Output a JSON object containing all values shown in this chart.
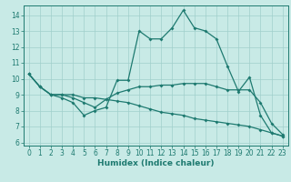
{
  "xlabel": "Humidex (Indice chaleur)",
  "xlim": [
    -0.5,
    23.5
  ],
  "ylim": [
    5.8,
    14.6
  ],
  "yticks": [
    6,
    7,
    8,
    9,
    10,
    11,
    12,
    13,
    14
  ],
  "xticks": [
    0,
    1,
    2,
    3,
    4,
    5,
    6,
    7,
    8,
    9,
    10,
    11,
    12,
    13,
    14,
    15,
    16,
    17,
    18,
    19,
    20,
    21,
    22,
    23
  ],
  "bg_color": "#c8eae6",
  "grid_color": "#a0cfcb",
  "line_color": "#1e7a70",
  "line1_x": [
    0,
    1,
    2,
    3,
    4,
    5,
    6,
    7,
    8,
    9,
    10,
    11,
    12,
    13,
    14,
    15,
    16,
    17,
    18,
    19,
    20,
    21,
    22,
    23
  ],
  "line1_y": [
    10.3,
    9.5,
    9.0,
    8.8,
    8.5,
    7.7,
    8.0,
    8.2,
    9.9,
    9.9,
    13.0,
    12.5,
    12.5,
    13.2,
    14.3,
    13.2,
    13.0,
    12.5,
    10.8,
    9.2,
    10.1,
    7.7,
    6.6,
    6.4
  ],
  "line2_x": [
    0,
    1,
    2,
    3,
    4,
    5,
    6,
    7,
    8,
    9,
    10,
    11,
    12,
    13,
    14,
    15,
    16,
    17,
    18,
    19,
    20,
    21,
    22,
    23
  ],
  "line2_y": [
    10.3,
    9.5,
    9.0,
    9.0,
    8.8,
    8.5,
    8.2,
    8.7,
    9.1,
    9.3,
    9.5,
    9.5,
    9.6,
    9.6,
    9.7,
    9.7,
    9.7,
    9.5,
    9.3,
    9.3,
    9.3,
    8.5,
    7.2,
    6.5
  ],
  "line3_x": [
    0,
    1,
    2,
    3,
    4,
    5,
    6,
    7,
    8,
    9,
    10,
    11,
    12,
    13,
    14,
    15,
    16,
    17,
    18,
    19,
    20,
    21,
    22,
    23
  ],
  "line3_y": [
    10.3,
    9.5,
    9.0,
    9.0,
    9.0,
    8.8,
    8.8,
    8.7,
    8.6,
    8.5,
    8.3,
    8.1,
    7.9,
    7.8,
    7.7,
    7.5,
    7.4,
    7.3,
    7.2,
    7.1,
    7.0,
    6.8,
    6.6,
    6.4
  ]
}
